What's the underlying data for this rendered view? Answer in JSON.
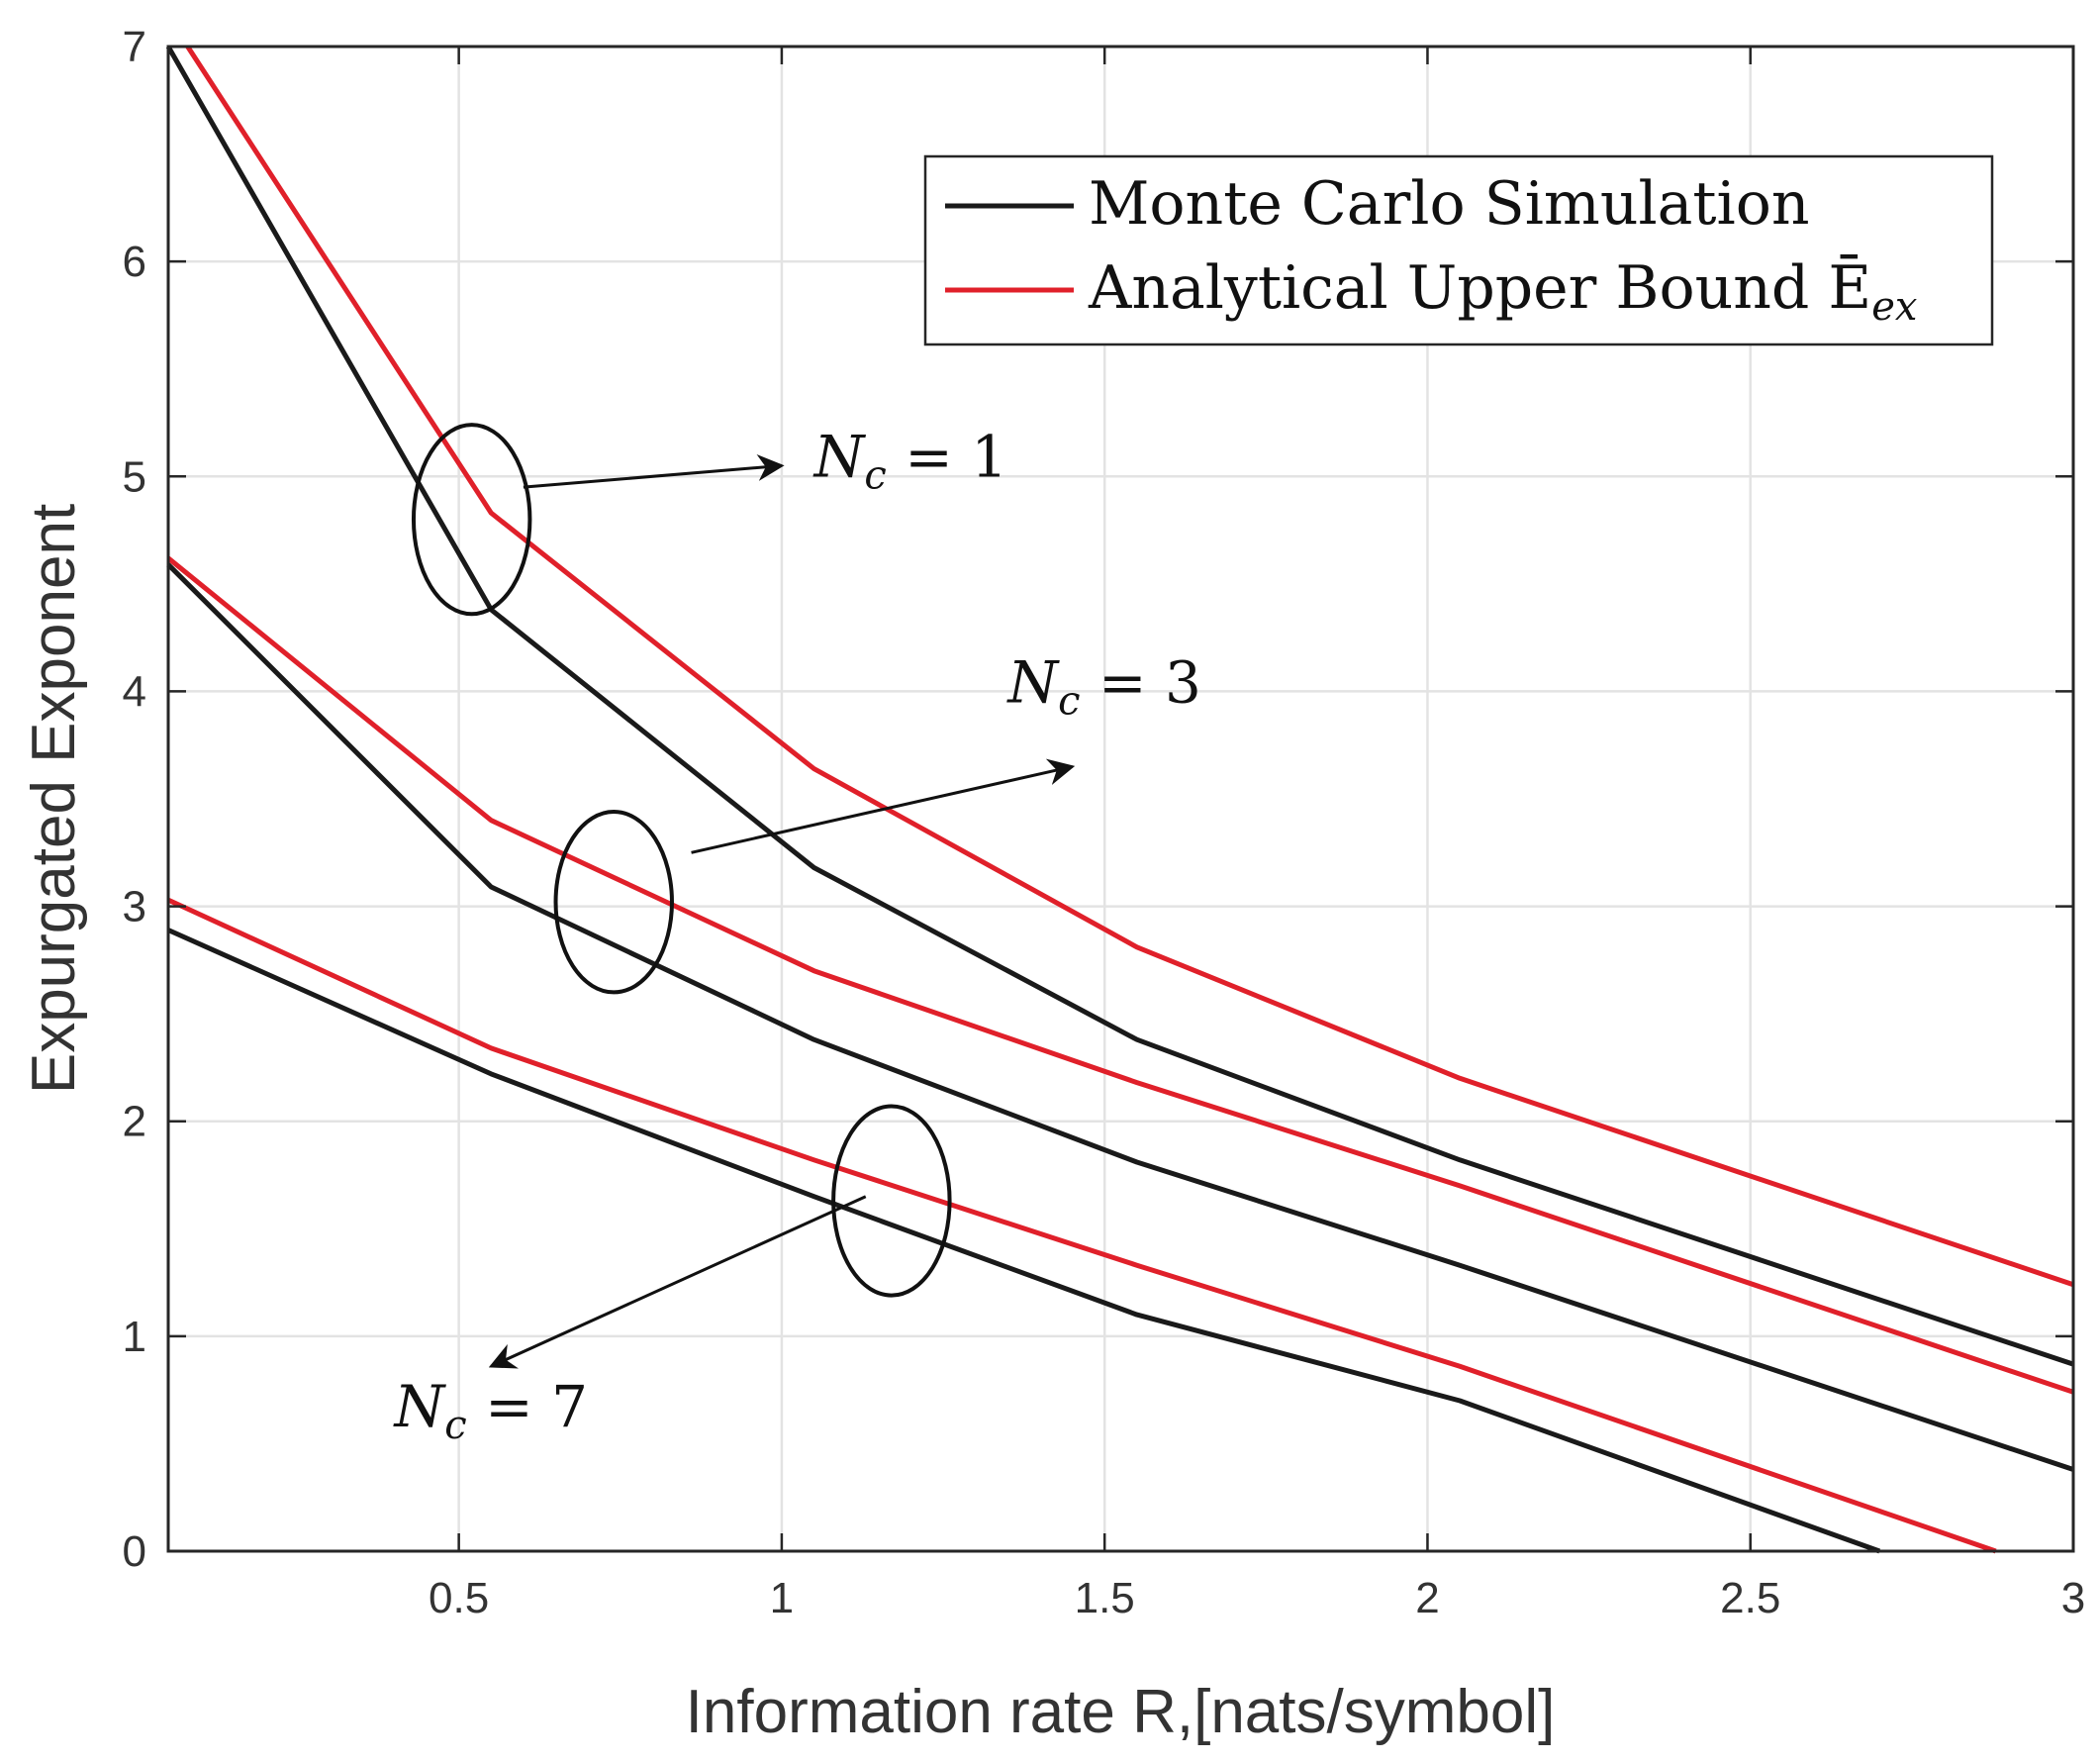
{
  "chart_data": {
    "type": "line",
    "xlabel": "Information rate R,[nats/symbol]",
    "ylabel": "Expurgated  Exponent",
    "xlim": [
      0.05,
      3
    ],
    "ylim": [
      0,
      7
    ],
    "grid": true,
    "xticks": [
      0.5,
      1,
      1.5,
      2,
      2.5,
      3
    ],
    "xtick_labels": [
      "0.5",
      "1",
      "1.5",
      "2",
      "2.5",
      "3"
    ],
    "yticks": [
      0,
      1,
      2,
      3,
      4,
      5,
      6,
      7
    ],
    "ytick_labels": [
      "0",
      "1",
      "2",
      "3",
      "4",
      "5",
      "6",
      "7"
    ],
    "legend": {
      "position": "top-right",
      "entries": [
        {
          "label": "Monte Carlo Simulation",
          "color": "#1a1a1a"
        },
        {
          "label": "Analytical Upper Bound Ē",
          "sub": "ex",
          "color": "#e0202a"
        }
      ]
    },
    "series": [
      {
        "name": "Monte Carlo Simulation (Nc=1)",
        "color": "#1a1a1a",
        "x": [
          0.05,
          0.55,
          1.05,
          1.55,
          2.05,
          3.0
        ],
        "y": [
          7.0,
          4.38,
          3.18,
          2.38,
          1.82,
          0.87
        ]
      },
      {
        "name": "Analytical Upper Bound (Nc=1)",
        "color": "#e0202a",
        "x": [
          0.08,
          0.55,
          1.05,
          1.55,
          2.05,
          3.0
        ],
        "y": [
          7.0,
          4.83,
          3.64,
          2.81,
          2.2,
          1.24
        ]
      },
      {
        "name": "Monte Carlo Simulation (Nc=3)",
        "color": "#1a1a1a",
        "x": [
          0.05,
          0.55,
          1.05,
          1.55,
          2.05,
          3.0
        ],
        "y": [
          4.59,
          3.09,
          2.38,
          1.81,
          1.33,
          0.38
        ]
      },
      {
        "name": "Analytical Upper Bound (Nc=3)",
        "color": "#e0202a",
        "x": [
          0.05,
          0.55,
          1.05,
          1.55,
          2.05,
          3.0
        ],
        "y": [
          4.62,
          3.4,
          2.7,
          2.18,
          1.7,
          0.74
        ]
      },
      {
        "name": "Monte Carlo Simulation (Nc=7)",
        "color": "#1a1a1a",
        "x": [
          0.05,
          0.55,
          1.05,
          1.55,
          2.05,
          2.7
        ],
        "y": [
          2.89,
          2.22,
          1.65,
          1.1,
          0.7,
          0.0
        ]
      },
      {
        "name": "Analytical Upper Bound (Nc=7)",
        "color": "#e0202a",
        "x": [
          0.05,
          0.55,
          1.05,
          1.55,
          2.05,
          2.88
        ],
        "y": [
          3.03,
          2.34,
          1.82,
          1.33,
          0.86,
          0.0
        ]
      }
    ],
    "annotations": [
      {
        "id": "nc1",
        "base": "N",
        "sub": "c",
        "rest": " = 1",
        "ellipse": [
          0.52,
          4.8,
          0.09,
          0.44
        ],
        "arrow": [
          [
            0.6,
            4.95
          ],
          [
            1.0,
            5.05
          ]
        ],
        "label_at": [
          1.2,
          5.0
        ]
      },
      {
        "id": "nc3",
        "base": "N",
        "sub": "c",
        "rest": " = 3",
        "ellipse": [
          0.74,
          3.02,
          0.09,
          0.42
        ],
        "arrow": [
          [
            0.86,
            3.25
          ],
          [
            1.45,
            3.65
          ]
        ],
        "label_at": [
          1.5,
          3.95
        ]
      },
      {
        "id": "nc7",
        "base": "N",
        "sub": "c",
        "rest": " = 7",
        "ellipse": [
          1.17,
          1.63,
          0.09,
          0.44
        ],
        "arrow": [
          [
            1.13,
            1.65
          ],
          [
            0.55,
            0.86
          ]
        ],
        "label_at": [
          0.55,
          0.58
        ]
      }
    ]
  }
}
